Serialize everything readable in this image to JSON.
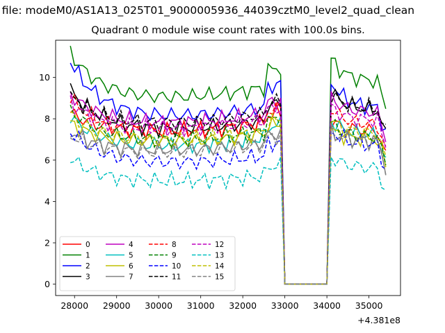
{
  "figure": {
    "suptitle": "n file: modeM0/AS1A13_025T01_9000005936_44039cztM0_level2_quad_clean",
    "title": "Quadrant 0 module wise count rates with 100.0s bins."
  },
  "chart_data": {
    "type": "line",
    "title": "Quadrant 0 module wise count rates with 100.0s bins.",
    "xlabel": "",
    "ylabel": "",
    "x_offset_label": "+4.381e8",
    "xlim": [
      27550,
      35750
    ],
    "ylim": [
      -0.55,
      11.8
    ],
    "xticks": [
      28000,
      29000,
      30000,
      31000,
      32000,
      33000,
      34000,
      35000
    ],
    "yticks": [
      0,
      2,
      4,
      6,
      8,
      10
    ],
    "grid": false,
    "legend": {
      "placement": "lower-left",
      "ncol": 4
    },
    "x": {
      "start": 27900,
      "step": 100,
      "count": 76
    },
    "gap": {
      "from": 32950,
      "to": 34050,
      "value": 0
    },
    "series": [
      {
        "name": "0",
        "color": "#ff0000",
        "dash": "solid",
        "level": 7.3,
        "start": 8.3,
        "end": 7.4
      },
      {
        "name": "1",
        "color": "#008000",
        "dash": "solid",
        "level": 8.9,
        "start": 11.2,
        "end": 9.8
      },
      {
        "name": "2",
        "color": "#0000ff",
        "dash": "solid",
        "level": 8.0,
        "start": 10.8,
        "end": 8.5
      },
      {
        "name": "3",
        "color": "#000000",
        "dash": "solid",
        "level": 7.4,
        "start": 9.4,
        "end": 8.4
      },
      {
        "name": "4",
        "color": "#bf00bf",
        "dash": "solid",
        "level": 7.7,
        "start": 9.2,
        "end": 8.3
      },
      {
        "name": "5",
        "color": "#00bfbf",
        "dash": "solid",
        "level": 6.6,
        "start": 8.1,
        "end": 7.2
      },
      {
        "name": "6",
        "color": "#bfbf00",
        "dash": "solid",
        "level": 6.8,
        "start": 7.8,
        "end": 7.0
      },
      {
        "name": "7",
        "color": "#808080",
        "dash": "solid",
        "level": 6.4,
        "start": 7.4,
        "end": 6.9
      },
      {
        "name": "8",
        "color": "#ff0000",
        "dash": "dashed",
        "level": 7.3,
        "start": 9.0,
        "end": 7.7
      },
      {
        "name": "9",
        "color": "#008000",
        "dash": "dashed",
        "level": 6.9,
        "start": 8.4,
        "end": 7.1
      },
      {
        "name": "10",
        "color": "#0000ff",
        "dash": "dashed",
        "level": 5.8,
        "start": 7.4,
        "end": 6.7
      },
      {
        "name": "11",
        "color": "#000000",
        "dash": "dashed",
        "level": 7.7,
        "start": 9.1,
        "end": 8.5
      },
      {
        "name": "12",
        "color": "#bf00bf",
        "dash": "dashed",
        "level": 7.4,
        "start": 8.8,
        "end": 7.9
      },
      {
        "name": "13",
        "color": "#00bfbf",
        "dash": "dashed",
        "level": 4.9,
        "start": 6.1,
        "end": 5.6
      },
      {
        "name": "14",
        "color": "#bfbf00",
        "dash": "dashed",
        "level": 6.9,
        "start": 8.2,
        "end": 7.3
      },
      {
        "name": "15",
        "color": "#808080",
        "dash": "dashed",
        "level": 6.3,
        "start": 7.2,
        "end": 6.9
      }
    ]
  }
}
